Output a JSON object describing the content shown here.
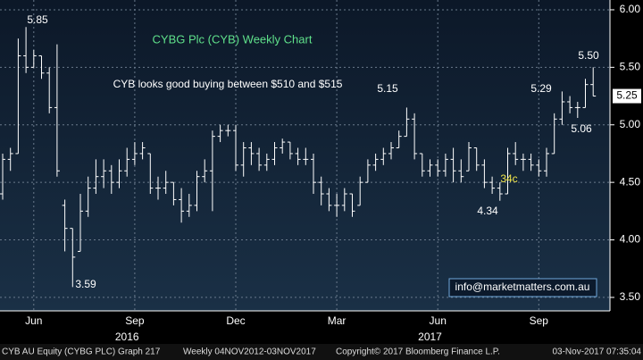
{
  "chart_data": {
    "type": "ohlc",
    "title": "CYBG Plc (CYB) Weekly Chart",
    "subtitle": "CYB looks good buying between $510 and $515",
    "color": "#ffffff",
    "categories": [
      null,
      null,
      null,
      null,
      "Jun",
      null,
      null,
      null,
      null,
      null,
      null,
      null,
      null,
      null,
      null,
      null,
      null,
      "Sep",
      null,
      null,
      null,
      null,
      null,
      null,
      null,
      null,
      null,
      null,
      null,
      null,
      "Dec",
      null,
      null,
      null,
      null,
      null,
      null,
      null,
      null,
      null,
      null,
      null,
      null,
      "Mar",
      null,
      null,
      null,
      null,
      null,
      null,
      null,
      null,
      null,
      null,
      null,
      null,
      "Jun",
      null,
      null,
      null,
      null,
      null,
      null,
      null,
      null,
      null,
      null,
      null,
      null,
      "Sep",
      null,
      null,
      null,
      null,
      null,
      null,
      null
    ],
    "years": [
      null,
      null,
      null,
      null,
      null,
      null,
      null,
      null,
      null,
      null,
      null,
      null,
      null,
      null,
      null,
      null,
      "2016",
      null,
      null,
      null,
      null,
      null,
      null,
      null,
      null,
      null,
      null,
      null,
      null,
      null,
      null,
      null,
      null,
      null,
      null,
      null,
      null,
      null,
      null,
      null,
      null,
      null,
      null,
      null,
      null,
      null,
      null,
      null,
      null,
      null,
      null,
      null,
      null,
      null,
      null,
      "2017",
      null,
      null,
      null,
      null,
      null,
      null,
      null,
      null,
      null,
      null,
      null,
      null,
      null,
      null,
      null,
      null,
      null,
      null,
      null,
      null,
      null
    ],
    "open": [
      4.4,
      4.7,
      4.75,
      5.6,
      5.5,
      5.6,
      5.45,
      5.15,
      4.3,
      4.1,
      3.9,
      4.25,
      4.45,
      4.55,
      4.6,
      4.5,
      4.6,
      4.7,
      4.75,
      4.75,
      4.45,
      4.45,
      4.5,
      4.35,
      4.25,
      4.3,
      4.55,
      4.6,
      4.9,
      4.95,
      4.95,
      4.65,
      4.8,
      4.75,
      4.65,
      4.7,
      4.8,
      4.85,
      4.75,
      4.7,
      4.7,
      4.5,
      4.4,
      4.3,
      4.3,
      4.4,
      4.3,
      4.5,
      4.65,
      4.7,
      4.75,
      4.8,
      4.9,
      5.05,
      4.75,
      4.6,
      4.65,
      4.6,
      4.7,
      4.6,
      4.6,
      4.8,
      4.65,
      4.5,
      4.45,
      4.4,
      4.75,
      4.7,
      4.7,
      4.65,
      4.6,
      4.75,
      5.05,
      5.2,
      5.15,
      5.15,
      5.35
    ],
    "high": [
      4.75,
      4.8,
      5.75,
      5.85,
      5.65,
      5.6,
      5.5,
      5.7,
      4.35,
      4.1,
      4.4,
      4.55,
      4.7,
      4.7,
      4.65,
      4.7,
      4.8,
      4.85,
      4.85,
      4.75,
      4.55,
      4.6,
      4.5,
      4.45,
      4.4,
      4.6,
      4.7,
      4.95,
      5.0,
      5.0,
      5.0,
      4.85,
      4.85,
      4.8,
      4.75,
      4.85,
      4.88,
      4.85,
      4.8,
      4.8,
      4.75,
      4.55,
      4.45,
      4.4,
      4.45,
      4.4,
      4.55,
      4.7,
      4.75,
      4.8,
      4.85,
      4.95,
      5.15,
      5.1,
      4.75,
      4.7,
      4.7,
      4.75,
      4.8,
      4.7,
      4.85,
      4.8,
      4.7,
      4.55,
      4.5,
      4.8,
      4.85,
      4.75,
      4.75,
      4.7,
      4.8,
      5.1,
      5.29,
      5.25,
      5.2,
      5.4,
      5.5
    ],
    "low": [
      4.35,
      4.6,
      4.75,
      5.45,
      5.5,
      5.4,
      5.1,
      4.55,
      3.9,
      3.59,
      3.9,
      4.2,
      4.4,
      4.45,
      4.4,
      4.45,
      4.55,
      4.65,
      4.7,
      4.4,
      4.35,
      4.4,
      4.3,
      4.15,
      4.2,
      4.25,
      4.5,
      4.25,
      4.85,
      4.9,
      4.6,
      4.55,
      4.65,
      4.6,
      4.6,
      4.65,
      4.75,
      4.7,
      4.65,
      4.65,
      4.4,
      4.3,
      4.25,
      4.2,
      4.25,
      4.2,
      4.3,
      4.5,
      4.6,
      4.65,
      4.7,
      4.8,
      4.9,
      4.7,
      4.55,
      4.55,
      4.55,
      4.55,
      4.5,
      4.5,
      4.6,
      4.6,
      4.45,
      4.4,
      4.34,
      4.4,
      4.65,
      4.6,
      4.6,
      4.55,
      4.55,
      4.75,
      5.0,
      5.1,
      5.06,
      5.15,
      5.25
    ],
    "close": [
      4.7,
      4.75,
      5.6,
      5.5,
      5.6,
      5.45,
      5.15,
      4.6,
      4.1,
      3.85,
      4.25,
      4.45,
      4.55,
      4.6,
      4.5,
      4.6,
      4.7,
      4.75,
      4.8,
      4.45,
      4.45,
      4.5,
      4.35,
      4.25,
      4.3,
      4.55,
      4.6,
      4.9,
      4.95,
      4.95,
      4.65,
      4.8,
      4.75,
      4.65,
      4.7,
      4.8,
      4.85,
      4.75,
      4.7,
      4.7,
      4.5,
      4.4,
      4.3,
      4.3,
      4.4,
      4.25,
      4.5,
      4.65,
      4.7,
      4.75,
      4.8,
      4.9,
      5.05,
      4.75,
      4.6,
      4.65,
      4.6,
      4.7,
      4.6,
      4.55,
      4.8,
      4.65,
      4.5,
      4.45,
      4.4,
      4.75,
      4.7,
      4.7,
      4.65,
      4.6,
      4.75,
      5.05,
      5.2,
      5.15,
      5.15,
      5.35,
      5.25
    ],
    "last_price": 5.25,
    "last_price_label": "5.25",
    "ylim": [
      3.383,
      6.085
    ],
    "yticks": [
      {
        "value": 3.5,
        "label": "3.50"
      },
      {
        "value": 4.0,
        "label": "4.00"
      },
      {
        "value": 4.5,
        "label": "4.50"
      },
      {
        "value": 5.0,
        "label": "5.00"
      },
      {
        "value": 5.5,
        "label": "5.50"
      },
      {
        "value": 6.0,
        "label": "6.00"
      }
    ],
    "grid": true,
    "annotations": [
      "5.85",
      "3.59",
      "5.15",
      "4.34",
      "34c",
      "5.29",
      "5.06",
      "5.50"
    ],
    "watermark": "info@marketmatters.com.au"
  },
  "footer": [
    "CYB AU Equity (CYBG PLC) Graph 217",
    "Weekly 04NOV2012-03NOV2017",
    "Copyright© 2017 Bloomberg Finance L.P.",
    "03-Nov-2017 07:35:04"
  ]
}
